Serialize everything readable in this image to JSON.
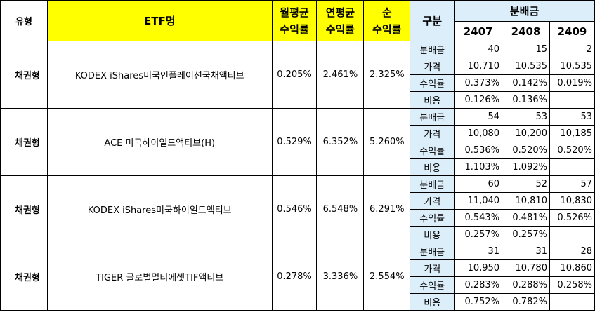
{
  "header": {
    "type_label": "유형",
    "etf_label": "ETF명",
    "monthly_label_1": "월평균",
    "monthly_label_2": "수익률",
    "yearly_label_1": "연평균",
    "yearly_label_2": "수익률",
    "net_label_1": "순",
    "net_label_2": "수익률",
    "category_label": "구분",
    "dividend_label": "분배금",
    "months": [
      "2407",
      "2408",
      "2409"
    ]
  },
  "rows": [
    {
      "type": "채권형",
      "name": "KODEX iShares미국인플레이션국채액티브",
      "monthly": "0.205%",
      "yearly": "2.461%",
      "net": "2.325%",
      "details": [
        {
          "label": "분배금",
          "values": [
            "40",
            "15",
            "2"
          ]
        },
        {
          "label": "가격",
          "values": [
            "10,710",
            "10,535",
            "10,535"
          ]
        },
        {
          "label": "수익률",
          "values": [
            "0.373%",
            "0.142%",
            "0.019%"
          ]
        },
        {
          "label": "비용",
          "values": [
            "0.126%",
            "0.136%",
            ""
          ]
        }
      ]
    },
    {
      "type": "채권형",
      "name": "ACE 미국하이일드액티브(H)",
      "monthly": "0.529%",
      "yearly": "6.352%",
      "net": "5.260%",
      "details": [
        {
          "label": "분배금",
          "values": [
            "54",
            "53",
            "53"
          ]
        },
        {
          "label": "가격",
          "values": [
            "10,080",
            "10,200",
            "10,185"
          ]
        },
        {
          "label": "수익률",
          "values": [
            "0.536%",
            "0.520%",
            "0.520%"
          ]
        },
        {
          "label": "비용",
          "values": [
            "1.103%",
            "1.092%",
            ""
          ]
        }
      ]
    },
    {
      "type": "채권형",
      "name": "KODEX iShares미국하이일드액티브",
      "monthly": "0.546%",
      "yearly": "6.548%",
      "net": "6.291%",
      "details": [
        {
          "label": "분배금",
          "values": [
            "60",
            "52",
            "57"
          ]
        },
        {
          "label": "가격",
          "values": [
            "11,040",
            "10,810",
            "10,830"
          ]
        },
        {
          "label": "수익률",
          "values": [
            "0.543%",
            "0.481%",
            "0.526%"
          ]
        },
        {
          "label": "비용",
          "values": [
            "0.257%",
            "0.257%",
            ""
          ]
        }
      ]
    },
    {
      "type": "채권형",
      "name": "TIGER 글로벌멀티에셋TIF액티브",
      "monthly": "0.278%",
      "yearly": "3.336%",
      "net": "2.554%",
      "details": [
        {
          "label": "분배금",
          "values": [
            "31",
            "31",
            "28"
          ]
        },
        {
          "label": "가격",
          "values": [
            "10,950",
            "10,780",
            "10,860"
          ]
        },
        {
          "label": "수익률",
          "values": [
            "0.283%",
            "0.288%",
            "0.258%"
          ]
        },
        {
          "label": "비용",
          "values": [
            "0.752%",
            "0.782%",
            ""
          ]
        }
      ]
    }
  ],
  "colors": {
    "header_yellow": "#ffff00",
    "header_blue": "#dceefa",
    "border": "#000000"
  }
}
